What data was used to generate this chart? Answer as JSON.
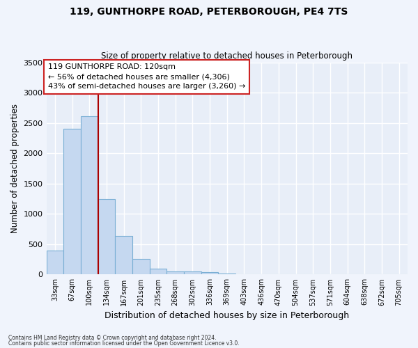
{
  "title1": "119, GUNTHORPE ROAD, PETERBOROUGH, PE4 7TS",
  "title2": "Size of property relative to detached houses in Peterborough",
  "xlabel": "Distribution of detached houses by size in Peterborough",
  "ylabel": "Number of detached properties",
  "categories": [
    "33sqm",
    "67sqm",
    "100sqm",
    "134sqm",
    "167sqm",
    "201sqm",
    "235sqm",
    "268sqm",
    "302sqm",
    "336sqm",
    "369sqm",
    "403sqm",
    "436sqm",
    "470sqm",
    "504sqm",
    "537sqm",
    "571sqm",
    "604sqm",
    "638sqm",
    "672sqm",
    "705sqm"
  ],
  "values": [
    390,
    2400,
    2610,
    1240,
    640,
    260,
    95,
    55,
    50,
    35,
    20,
    0,
    0,
    0,
    0,
    0,
    0,
    0,
    0,
    0,
    0
  ],
  "bar_color": "#c5d8f0",
  "bar_edgecolor": "#7aafd4",
  "background_color": "#e8eef8",
  "grid_color": "#ffffff",
  "vline_x_index": 3,
  "vline_color": "#aa0000",
  "annotation_text": "119 GUNTHORPE ROAD: 120sqm\n← 56% of detached houses are smaller (4,306)\n43% of semi-detached houses are larger (3,260) →",
  "annotation_box_facecolor": "#ffffff",
  "annotation_box_edgecolor": "#cc2222",
  "ylim": [
    0,
    3500
  ],
  "yticks": [
    0,
    500,
    1000,
    1500,
    2000,
    2500,
    3000,
    3500
  ],
  "fig_facecolor": "#f0f4fc",
  "footnote1": "Contains HM Land Registry data © Crown copyright and database right 2024.",
  "footnote2": "Contains public sector information licensed under the Open Government Licence v3.0."
}
